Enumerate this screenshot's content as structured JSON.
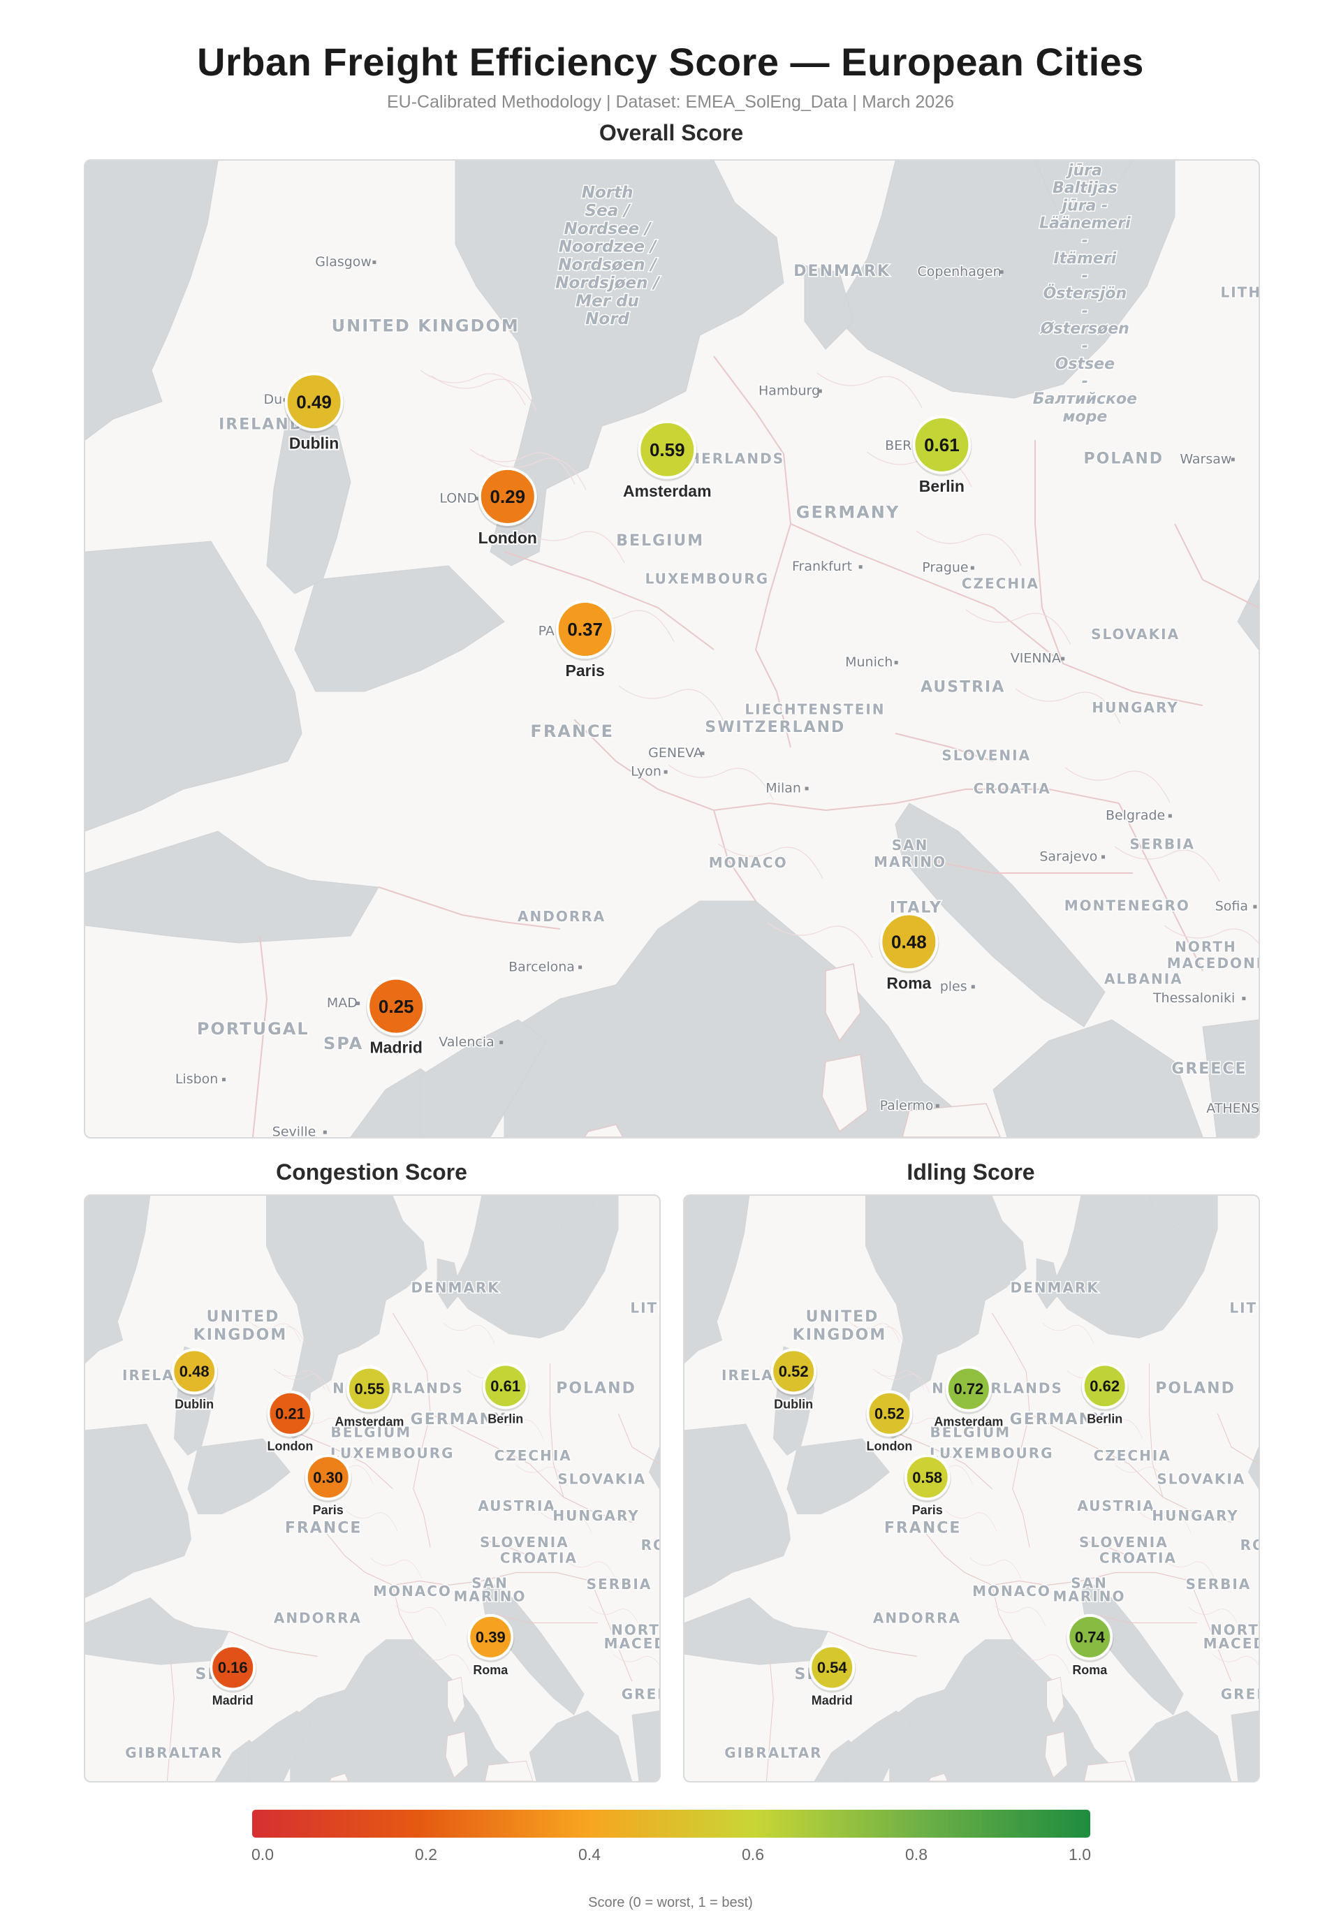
{
  "title": "Urban Freight Efficiency Score — European Cities",
  "subtitle": "EU-Calibrated Methodology  |  Dataset: EMEA_SolEng_Data  |  March 2026",
  "colors": {
    "land": "#f8f7f5",
    "water": "#d5d8db",
    "border": "#e8c8c8"
  },
  "map_overall": {
    "title": "Overall Score",
    "countries": [
      "UNITED KINGDOM",
      "IRELAND",
      "DENMARK",
      "GERMANY",
      "POLAND",
      "BELGIUM",
      "LUXEMBOURG",
      "CZECHIA",
      "SLOVAKIA",
      "AUSTRIA",
      "HUNGARY",
      "LIECHTENSTEIN",
      "SWITZERLAND",
      "FRANCE",
      "SLOVENIA",
      "CROATIA",
      "SERBIA",
      "MONACO",
      "SAN",
      "MARINO",
      "ANDORRA",
      "ITALY",
      "MONTENEGRO",
      "NORTH",
      "MACEDONIA",
      "ALBANIA",
      "PORTUGAL",
      "GREECE",
      "LITH",
      "SPA",
      "NETHERLANDS"
    ],
    "seas": [
      "North",
      "Sea /",
      "Nordsee /",
      "Noordzee /",
      "Nordsøen /",
      "Nordsjøen /",
      "Mer du",
      "Nord",
      "jūra",
      "Baltijas",
      "jūra -",
      "Läänemeri",
      "-",
      "Itämeri",
      "-",
      "Östersjön",
      "-",
      "Østersøen",
      "-",
      "Ostsee",
      "-",
      "Балтийское",
      "море"
    ],
    "places": [
      "Glasgow",
      "Copenhagen",
      "Hamburg",
      "Warsaw",
      "Frankfurt",
      "Prague",
      "Munich",
      "VIENNA",
      "GENEVA",
      "Lyon",
      "Milan",
      "Belgrade",
      "Sarajevo",
      "Sofia",
      "Barcelona",
      "Valencia",
      "Lisbon",
      "Seville",
      "Palermo",
      "Thessaloniki",
      "ATHENS",
      "BER",
      "LOND",
      "PA",
      "MAD",
      "Du",
      "ples"
    ],
    "cities": [
      {
        "name": "Dublin",
        "score": "0.49"
      },
      {
        "name": "London",
        "score": "0.29"
      },
      {
        "name": "Amsterdam",
        "score": "0.59"
      },
      {
        "name": "Berlin",
        "score": "0.61"
      },
      {
        "name": "Paris",
        "score": "0.37"
      },
      {
        "name": "Roma",
        "score": "0.48"
      },
      {
        "name": "Madrid",
        "score": "0.25"
      }
    ]
  },
  "map_congestion": {
    "title": "Congestion Score",
    "countries": [
      "UNITED",
      "KINGDOM",
      "IRELA",
      "DENMARK",
      "LITH",
      "NETHERLANDS",
      "POLAND",
      "GERMANY",
      "BELGIUM",
      "LUXEMBOURG",
      "CZECHIA",
      "SLOVAKIA",
      "AUSTRIA",
      "HUNGARY",
      "FRANCE",
      "SLOVENIA",
      "CROATIA",
      "RO",
      "MONACO",
      "SAN",
      "MARINO",
      "SERBIA",
      "ANDORRA",
      "NORTH",
      "MACEDO",
      "SPAI",
      "GREEC",
      "GIBRALTAR"
    ],
    "cities": [
      {
        "name": "Dublin",
        "score": "0.48"
      },
      {
        "name": "London",
        "score": "0.21"
      },
      {
        "name": "Amsterdam",
        "score": "0.55"
      },
      {
        "name": "Berlin",
        "score": "0.61"
      },
      {
        "name": "Paris",
        "score": "0.30"
      },
      {
        "name": "Roma",
        "score": "0.39"
      },
      {
        "name": "Madrid",
        "score": "0.16"
      }
    ]
  },
  "map_idling": {
    "title": "Idling Score",
    "countries": [
      "UNITED",
      "KINGDOM",
      "IRELA",
      "DENMARK",
      "LITH",
      "NETHERLANDS",
      "POLAND",
      "GERMANY",
      "BELGIUM",
      "LUXEMBOURG",
      "CZECHIA",
      "SLOVAKIA",
      "AUSTRIA",
      "HUNGARY",
      "FRANCE",
      "SLOVENIA",
      "CROATIA",
      "RO",
      "MONACO",
      "SAN",
      "MARINO",
      "SERBIA",
      "ANDORRA",
      "NORTH",
      "MACEDO",
      "SPAI",
      "GREEC",
      "GIBRALTAR"
    ],
    "cities": [
      {
        "name": "Dublin",
        "score": "0.52"
      },
      {
        "name": "London",
        "score": "0.52"
      },
      {
        "name": "Amsterdam",
        "score": "0.72"
      },
      {
        "name": "Berlin",
        "score": "0.62"
      },
      {
        "name": "Paris",
        "score": "0.58"
      },
      {
        "name": "Roma",
        "score": "0.74"
      },
      {
        "name": "Madrid",
        "score": "0.54"
      }
    ]
  },
  "legend": {
    "title": "Score (0 = worst, 1 = best)",
    "ticks": [
      "0.0",
      "0.2",
      "0.4",
      "0.6",
      "0.8",
      "1.0"
    ],
    "stops": [
      "#d63031",
      "#e55a12",
      "#f7a520",
      "#c8d636",
      "#6db046",
      "#1e8c3f"
    ]
  }
}
